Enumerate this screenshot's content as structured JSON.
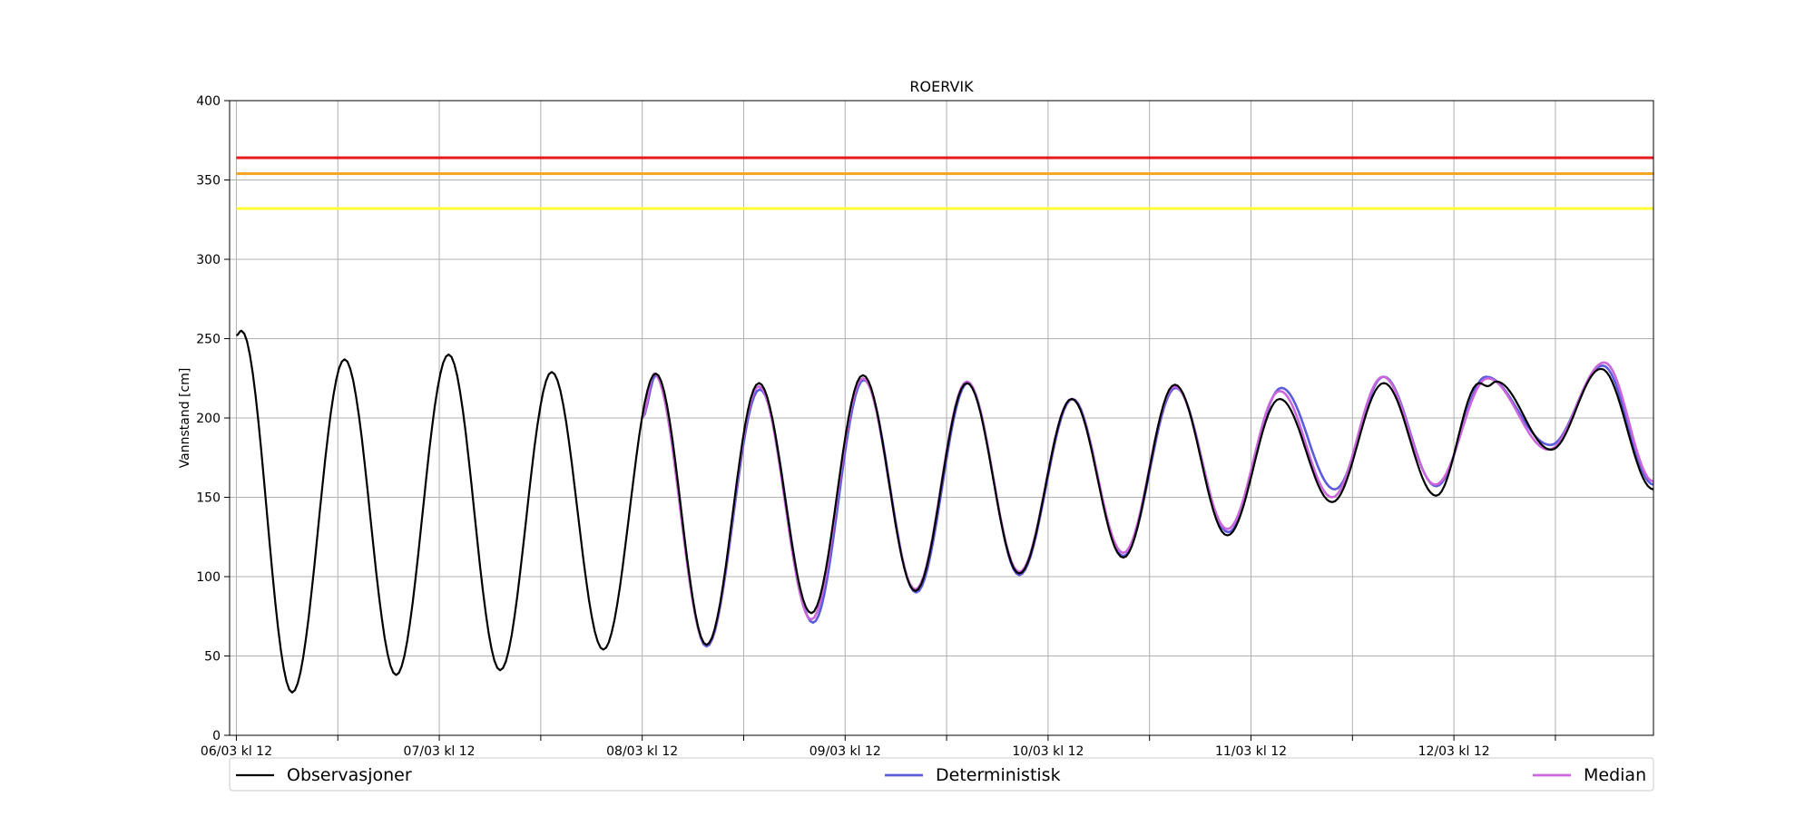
{
  "chart_data": {
    "type": "line",
    "title": "ROERVIK",
    "ylabel": "Vannstand [cm]",
    "xlabel": "",
    "ylim": [
      0,
      400
    ],
    "xlim_hours": [
      -0.8,
      167.6
    ],
    "y_ticks": [
      0,
      50,
      100,
      150,
      200,
      250,
      300,
      350,
      400
    ],
    "x_ticks": [
      {
        "h": 0,
        "label": "06/03 kl 12"
      },
      {
        "h": 12,
        "label": ""
      },
      {
        "h": 24,
        "label": "07/03 kl 12"
      },
      {
        "h": 36,
        "label": ""
      },
      {
        "h": 48,
        "label": "08/03 kl 12"
      },
      {
        "h": 60,
        "label": ""
      },
      {
        "h": 72,
        "label": "09/03 kl 12"
      },
      {
        "h": 84,
        "label": ""
      },
      {
        "h": 96,
        "label": "10/03 kl 12"
      },
      {
        "h": 108,
        "label": ""
      },
      {
        "h": 120,
        "label": "11/03 kl 12"
      },
      {
        "h": 132,
        "label": ""
      },
      {
        "h": 144,
        "label": "12/03 kl 12"
      },
      {
        "h": 156,
        "label": ""
      }
    ],
    "grid": true,
    "thresholds": [
      {
        "value": 364,
        "color": "#e41a1c"
      },
      {
        "value": 354,
        "color": "#f5a623"
      },
      {
        "value": 332,
        "color": "#ffff33"
      }
    ],
    "series": [
      {
        "name": "Observasjoner",
        "color": "#000000",
        "extrema": [
          [
            0,
            252
          ],
          [
            0.6,
            255
          ],
          [
            6.6,
            27
          ],
          [
            12.8,
            237
          ],
          [
            18.9,
            38
          ],
          [
            25.1,
            240
          ],
          [
            31.2,
            41
          ],
          [
            37.3,
            229
          ],
          [
            43.4,
            54
          ],
          [
            49.6,
            228
          ],
          [
            55.6,
            57
          ],
          [
            61.8,
            222
          ],
          [
            68.0,
            77
          ],
          [
            74.1,
            227
          ],
          [
            80.3,
            91
          ],
          [
            86.4,
            222
          ],
          [
            92.6,
            102
          ],
          [
            98.8,
            212
          ],
          [
            104.9,
            112
          ],
          [
            111.0,
            221
          ],
          [
            117.2,
            126
          ],
          [
            123.4,
            212
          ],
          [
            129.6,
            147
          ],
          [
            135.7,
            222
          ],
          [
            141.9,
            151
          ],
          [
            147.0,
            222
          ],
          [
            148.0,
            220
          ],
          [
            149.0,
            223
          ],
          [
            155.5,
            180
          ],
          [
            161.4,
            231
          ],
          [
            167.6,
            155
          ]
        ]
      },
      {
        "name": "Deterministisk",
        "color": "#5b5bdb",
        "extrema": [
          [
            48.0,
            200
          ],
          [
            49.6,
            227
          ],
          [
            55.6,
            56
          ],
          [
            61.9,
            218
          ],
          [
            68.2,
            71
          ],
          [
            74.2,
            224
          ],
          [
            80.4,
            90
          ],
          [
            86.5,
            222
          ],
          [
            92.6,
            101
          ],
          [
            98.9,
            212
          ],
          [
            104.9,
            113
          ],
          [
            111.1,
            219
          ],
          [
            117.3,
            128
          ],
          [
            123.6,
            219
          ],
          [
            129.9,
            155
          ],
          [
            135.7,
            226
          ],
          [
            141.9,
            157
          ],
          [
            147.8,
            226
          ],
          [
            155.4,
            183
          ],
          [
            161.6,
            233
          ],
          [
            167.6,
            158
          ]
        ]
      },
      {
        "name": "Median",
        "color": "#cc66dd",
        "extrema": [
          [
            48.0,
            200
          ],
          [
            49.4,
            228
          ],
          [
            55.6,
            57
          ],
          [
            61.8,
            220
          ],
          [
            68.0,
            73
          ],
          [
            74.1,
            225
          ],
          [
            80.3,
            92
          ],
          [
            86.4,
            223
          ],
          [
            92.6,
            103
          ],
          [
            98.8,
            212
          ],
          [
            104.9,
            115
          ],
          [
            111.0,
            220
          ],
          [
            117.2,
            130
          ],
          [
            123.4,
            217
          ],
          [
            129.6,
            150
          ],
          [
            135.6,
            226
          ],
          [
            141.8,
            158
          ],
          [
            148.0,
            225
          ],
          [
            155.2,
            180
          ],
          [
            161.8,
            235
          ],
          [
            167.6,
            160
          ]
        ]
      }
    ],
    "legend": "bottom"
  }
}
